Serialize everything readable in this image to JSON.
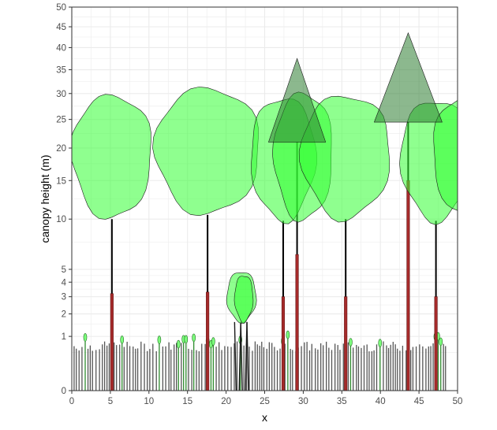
{
  "chart_data": {
    "type": "scatter",
    "title": "",
    "xlabel": "x",
    "ylabel": "canopy height (m)",
    "xlim": [
      0,
      50
    ],
    "ylim": [
      0,
      50
    ],
    "y_scale": "square-root",
    "x_ticks": [
      0,
      5,
      10,
      15,
      20,
      25,
      30,
      35,
      40,
      45,
      50
    ],
    "x_tick_labels": [
      "0",
      "5",
      "10",
      "15",
      "20",
      "25",
      "30",
      "35",
      "40",
      "45",
      "50"
    ],
    "y_ticks": [
      0,
      1,
      2,
      3,
      4,
      5,
      10,
      15,
      20,
      25,
      30,
      35,
      40,
      45,
      50
    ],
    "y_tick_labels": [
      "0",
      "1",
      "2",
      "3",
      "4",
      "5",
      "10",
      "15",
      "20",
      "25",
      "30",
      "35",
      "40",
      "45",
      "50"
    ],
    "grid": true,
    "legend": "none",
    "colors": {
      "panel_border": "#333333",
      "grid": "#ebebeb",
      "broadleaf_crown": "#33ff33",
      "conifer_crown": "#2e7d32",
      "stem": "#000000",
      "stem_base": "#a52a2a",
      "grass": "#555555",
      "grass_green": "#2e8b2e"
    },
    "broadleaf_trees": [
      {
        "x": 5.2,
        "height": 29.5,
        "crown_base": 10.0,
        "crown_radius": 5.2,
        "crown_mid": 19.5
      },
      {
        "x": 17.6,
        "height": 31.0,
        "crown_base": 10.5,
        "crown_radius": 6.8,
        "crown_mid": 20.0
      },
      {
        "x": 22.0,
        "height": 4.8,
        "crown_base": 1.6,
        "crown_radius": 1.9,
        "crown_mid": 3.0
      },
      {
        "x": 22.3,
        "height": 4.5,
        "crown_base": 1.6,
        "crown_radius": 1.2,
        "crown_mid": 3.0
      },
      {
        "x": 27.4,
        "height": 29.0,
        "crown_base": 9.8,
        "crown_radius": 4.2,
        "crown_mid": 19.0
      },
      {
        "x": 30.0,
        "height": 30.0,
        "crown_base": 9.8,
        "crown_radius": 3.8,
        "crown_mid": 19.0
      },
      {
        "x": 35.5,
        "height": 29.5,
        "crown_base": 10.0,
        "crown_radius": 5.8,
        "crown_mid": 19.5
      },
      {
        "x": 47.2,
        "height": 28.5,
        "crown_base": 9.8,
        "crown_radius": 4.6,
        "crown_mid": 19.0
      },
      {
        "x": 51.3,
        "height": 29.5,
        "crown_base": 10.2,
        "crown_radius": 4.5,
        "crown_mid": 19.5
      }
    ],
    "conifer_trees": [
      {
        "x": 29.2,
        "height": 37.5,
        "crown_base": 21.0,
        "crown_halfwidth": 3.7
      },
      {
        "x": 43.6,
        "height": 43.5,
        "crown_base": 24.5,
        "crown_halfwidth": 4.4
      }
    ],
    "stems": [
      {
        "x": 5.2,
        "top": 10.0,
        "base_band": 3.2
      },
      {
        "x": 17.6,
        "top": 10.5,
        "base_band": 3.3
      },
      {
        "x": 27.4,
        "top": 9.8,
        "base_band": 3.0
      },
      {
        "x": 29.2,
        "top": 21.0,
        "base_band": 6.3
      },
      {
        "x": 35.5,
        "top": 10.0,
        "base_band": 3.0
      },
      {
        "x": 43.6,
        "top": 24.5,
        "base_band": 15.0
      },
      {
        "x": 47.2,
        "top": 9.8,
        "base_band": 3.0
      }
    ],
    "understory": {
      "height_range": [
        0.7,
        1.1
      ],
      "x_range": [
        0.3,
        48.5
      ]
    }
  }
}
